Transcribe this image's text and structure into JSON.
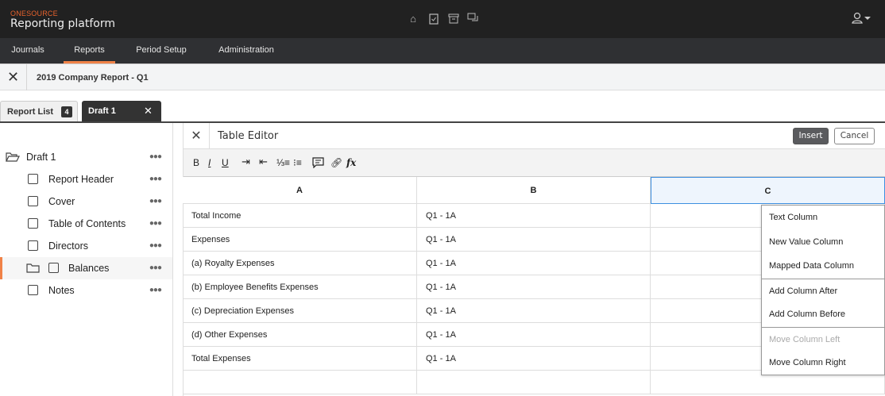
{
  "header": {
    "brand": "ONESOURCE",
    "app_title": "Reporting platform",
    "icons": [
      "home-icon",
      "clipboard-check-icon",
      "archive-icon",
      "chat-icon"
    ],
    "user_icon": "user-icon"
  },
  "nav": {
    "items": [
      {
        "label": "Journals"
      },
      {
        "label": "Reports",
        "active": true
      },
      {
        "label": "Period Setup"
      },
      {
        "label": "Administration"
      }
    ]
  },
  "breadcrumb": {
    "title": "2019 Company Report - Q1"
  },
  "tabs": [
    {
      "label": "Report List",
      "badge": "4"
    },
    {
      "label": "Draft 1",
      "active": true
    }
  ],
  "sidebar": {
    "root": "Draft 1",
    "items": [
      {
        "label": "Report Header"
      },
      {
        "label": "Cover"
      },
      {
        "label": "Table of Contents"
      },
      {
        "label": "Directors"
      },
      {
        "label": "Balances",
        "selected": true,
        "folder": true
      },
      {
        "label": "Notes"
      }
    ]
  },
  "editor": {
    "title": "Table Editor",
    "insert_label": "Insert",
    "cancel_label": "Cancel",
    "toolbar": [
      "bold",
      "italic",
      "underline",
      "indent",
      "outdent",
      "numbered-list",
      "bullet-list",
      "comment",
      "link",
      "formula"
    ],
    "columns": [
      "A",
      "B",
      "C"
    ],
    "rows": [
      [
        "Total Income",
        "Q1 - 1A",
        ""
      ],
      [
        "Expenses",
        "Q1 - 1A",
        ""
      ],
      [
        "(a) Royalty Expenses",
        "Q1 - 1A",
        ""
      ],
      [
        "(b) Employee Benefits Expenses",
        "Q1 - 1A",
        ""
      ],
      [
        "(c) Depreciation Expenses",
        "Q1 - 1A",
        ""
      ],
      [
        "(d) Other Expenses",
        "Q1 - 1A",
        ""
      ],
      [
        "Total Expenses",
        "Q1 - 1A",
        ""
      ],
      [
        "",
        "",
        ""
      ]
    ],
    "selected_column": "C"
  },
  "context_menu": {
    "items": [
      {
        "label": "Text Column"
      },
      {
        "label": "New Value Column"
      },
      {
        "label": "Mapped Data Column"
      },
      {
        "label": "Add Column After"
      },
      {
        "label": "Add Column Before"
      },
      {
        "label": "Move Column Left",
        "disabled": true
      },
      {
        "label": "Move Column Right"
      }
    ]
  },
  "colors": {
    "accent": "#f08247",
    "topbar": "#212121",
    "selected_column": "#eef5fd",
    "selected_border": "#3d8fe0"
  }
}
